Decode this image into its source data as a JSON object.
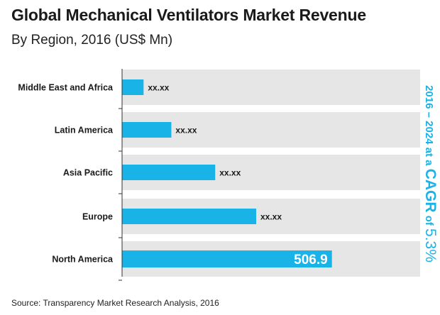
{
  "title": "Global Mechanical Ventilators Market Revenue",
  "subtitle": "By Region, 2016 (US$ Mn)",
  "source": "Source: Transparency Market Research Analysis, 2016",
  "cagr": {
    "prefix": "2016 – 2024 at a ",
    "label": "CAGR",
    "of": " of ",
    "value": "5.3%"
  },
  "colors": {
    "bar": "#1ab3e8",
    "track": "#e6e6e6",
    "accent": "#1ab3e8",
    "axis": "#333333"
  },
  "chart_data": {
    "type": "bar",
    "orientation": "horizontal",
    "title": "Global Mechanical Ventilators Market Revenue",
    "subtitle": "By Region, 2016 (US$ Mn)",
    "categories": [
      "Middle East and Africa",
      "Latin America",
      "Asia Pacific",
      "Europe",
      "North America"
    ],
    "values": [
      52,
      119,
      225,
      324,
      506.9
    ],
    "data_labels": [
      "xx.xx",
      "xx.xx",
      "xx.xx",
      "xx.xx",
      "506.9"
    ],
    "xlim": [
      0,
      720
    ],
    "grid": false,
    "legend": "none"
  }
}
